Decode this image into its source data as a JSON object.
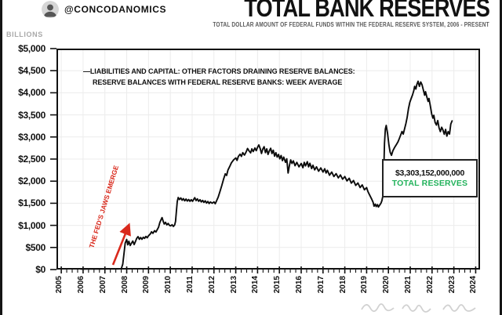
{
  "header": {
    "handle": "@CONCODANOMICS",
    "title": "TOTAL BANK RESERVES",
    "subtitle": "TOTAL DOLLAR AMOUNT OF FEDERAL FUNDS WITHIN THE FEDERAL RESERVE SYSTEM, 2006 - PRESENT",
    "units_label": "BILLIONS"
  },
  "annotations": {
    "jaws_label": "THE FED'S JAWS EMERGE",
    "reserves_value": "$3,303,152,000,000",
    "reserves_title": "TOTAL RESERVES",
    "accent_red": "#d9291c",
    "accent_green": "#22b25b"
  },
  "chart_data": {
    "type": "line",
    "title": "TOTAL BANK RESERVES",
    "ylabel": "BILLIONS",
    "xlabel": "",
    "grid": true,
    "legend_position": "top-left inside plot",
    "legend_line1": "—LIABILITIES AND CAPITAL: OTHER FACTORS DRAINING RESERVE BALANCES:",
    "legend_line2": "RESERVE BALANCES WITH FEDERAL RESERVE BANKS: WEEK AVERAGE",
    "xlim": [
      2004.78,
      2024.2
    ],
    "ylim": [
      0,
      5000
    ],
    "x_ticks": [
      2005,
      2006,
      2007,
      2008,
      2009,
      2010,
      2011,
      2012,
      2013,
      2014,
      2015,
      2016,
      2017,
      2018,
      2019,
      2020,
      2021,
      2022,
      2023,
      2024
    ],
    "y_ticks": {
      "values": [
        0,
        500,
        1000,
        1500,
        2000,
        2500,
        3000,
        3500,
        4000,
        4500,
        5000
      ],
      "labels": [
        "$0",
        "$500",
        "$1,000",
        "$1,500",
        "$2,000",
        "$2,500",
        "$3,000",
        "$3,500",
        "$4,000",
        "$4,500",
        "$5,000"
      ]
    },
    "line_color": "#0b0b0b",
    "last_value_billions": 3303.152,
    "series": [
      {
        "name": "Liabilities and Capital: Other Factors Draining Reserve Balances: Reserve Balances with Federal Reserve Banks: Week Average",
        "units": "billions of dollars",
        "points": [
          [
            2005.9,
            10
          ],
          [
            2006.2,
            12
          ],
          [
            2006.5,
            12
          ],
          [
            2006.8,
            13
          ],
          [
            2007.1,
            14
          ],
          [
            2007.4,
            15
          ],
          [
            2007.6,
            15
          ],
          [
            2007.75,
            18
          ],
          [
            2007.82,
            120
          ],
          [
            2007.88,
            380
          ],
          [
            2007.93,
            600
          ],
          [
            2008,
            680
          ],
          [
            2008.05,
            560
          ],
          [
            2008.1,
            640
          ],
          [
            2008.16,
            545
          ],
          [
            2008.22,
            600
          ],
          [
            2008.28,
            645
          ],
          [
            2008.34,
            565
          ],
          [
            2008.4,
            635
          ],
          [
            2008.46,
            705
          ],
          [
            2008.52,
            745
          ],
          [
            2008.58,
            685
          ],
          [
            2008.64,
            725
          ],
          [
            2008.7,
            685
          ],
          [
            2008.76,
            730
          ],
          [
            2008.82,
            705
          ],
          [
            2008.88,
            750
          ],
          [
            2008.94,
            720
          ],
          [
            2009,
            765
          ],
          [
            2009.08,
            805
          ],
          [
            2009.14,
            855
          ],
          [
            2009.2,
            820
          ],
          [
            2009.28,
            880
          ],
          [
            2009.34,
            850
          ],
          [
            2009.4,
            905
          ],
          [
            2009.46,
            955
          ],
          [
            2009.52,
            1065
          ],
          [
            2009.58,
            1135
          ],
          [
            2009.62,
            1175
          ],
          [
            2009.68,
            1080
          ],
          [
            2009.72,
            1030
          ],
          [
            2009.78,
            1070
          ],
          [
            2009.84,
            1010
          ],
          [
            2009.9,
            1045
          ],
          [
            2009.96,
            1000
          ],
          [
            2010.02,
            990
          ],
          [
            2010.08,
            1015
          ],
          [
            2010.14,
            975
          ],
          [
            2010.2,
            1010
          ],
          [
            2010.24,
            1090
          ],
          [
            2010.28,
            1320
          ],
          [
            2010.32,
            1540
          ],
          [
            2010.36,
            1630
          ],
          [
            2010.42,
            1585
          ],
          [
            2010.48,
            1620
          ],
          [
            2010.54,
            1570
          ],
          [
            2010.6,
            1605
          ],
          [
            2010.66,
            1555
          ],
          [
            2010.72,
            1595
          ],
          [
            2010.78,
            1550
          ],
          [
            2010.84,
            1585
          ],
          [
            2010.9,
            1545
          ],
          [
            2010.96,
            1580
          ],
          [
            2011.02,
            1545
          ],
          [
            2011.08,
            1595
          ],
          [
            2011.12,
            1625
          ],
          [
            2011.18,
            1560
          ],
          [
            2011.24,
            1600
          ],
          [
            2011.3,
            1545
          ],
          [
            2011.36,
            1580
          ],
          [
            2011.42,
            1530
          ],
          [
            2011.48,
            1565
          ],
          [
            2011.54,
            1520
          ],
          [
            2011.6,
            1555
          ],
          [
            2011.66,
            1505
          ],
          [
            2011.72,
            1540
          ],
          [
            2011.78,
            1495
          ],
          [
            2011.84,
            1530
          ],
          [
            2011.92,
            1500
          ],
          [
            2012,
            1530
          ],
          [
            2012.06,
            1490
          ],
          [
            2012.12,
            1555
          ],
          [
            2012.2,
            1645
          ],
          [
            2012.28,
            1770
          ],
          [
            2012.36,
            1905
          ],
          [
            2012.44,
            2045
          ],
          [
            2012.52,
            2165
          ],
          [
            2012.58,
            2130
          ],
          [
            2012.64,
            2250
          ],
          [
            2012.72,
            2330
          ],
          [
            2012.8,
            2415
          ],
          [
            2012.9,
            2480
          ],
          [
            2013,
            2525
          ],
          [
            2013.06,
            2470
          ],
          [
            2013.12,
            2560
          ],
          [
            2013.2,
            2610
          ],
          [
            2013.26,
            2560
          ],
          [
            2013.32,
            2645
          ],
          [
            2013.4,
            2590
          ],
          [
            2013.48,
            2665
          ],
          [
            2013.54,
            2740
          ],
          [
            2013.6,
            2690
          ],
          [
            2013.68,
            2640
          ],
          [
            2013.74,
            2730
          ],
          [
            2013.8,
            2670
          ],
          [
            2013.88,
            2750
          ],
          [
            2013.94,
            2690
          ],
          [
            2014,
            2770
          ],
          [
            2014.06,
            2820
          ],
          [
            2014.12,
            2740
          ],
          [
            2014.18,
            2625
          ],
          [
            2014.24,
            2725
          ],
          [
            2014.3,
            2780
          ],
          [
            2014.36,
            2645
          ],
          [
            2014.42,
            2730
          ],
          [
            2014.48,
            2605
          ],
          [
            2014.54,
            2685
          ],
          [
            2014.6,
            2745
          ],
          [
            2014.66,
            2625
          ],
          [
            2014.72,
            2700
          ],
          [
            2014.78,
            2565
          ],
          [
            2014.84,
            2645
          ],
          [
            2014.9,
            2545
          ],
          [
            2014.96,
            2605
          ],
          [
            2015.02,
            2505
          ],
          [
            2015.08,
            2580
          ],
          [
            2015.14,
            2465
          ],
          [
            2015.2,
            2545
          ],
          [
            2015.28,
            2425
          ],
          [
            2015.34,
            2505
          ],
          [
            2015.4,
            2185
          ],
          [
            2015.46,
            2355
          ],
          [
            2015.52,
            2480
          ],
          [
            2015.58,
            2400
          ],
          [
            2015.64,
            2460
          ],
          [
            2015.72,
            2350
          ],
          [
            2015.8,
            2425
          ],
          [
            2015.9,
            2325
          ],
          [
            2016,
            2400
          ],
          [
            2016.08,
            2305
          ],
          [
            2016.14,
            2425
          ],
          [
            2016.2,
            2345
          ],
          [
            2016.28,
            2440
          ],
          [
            2016.34,
            2325
          ],
          [
            2016.4,
            2405
          ],
          [
            2016.48,
            2285
          ],
          [
            2016.54,
            2360
          ],
          [
            2016.62,
            2255
          ],
          [
            2016.7,
            2325
          ],
          [
            2016.8,
            2225
          ],
          [
            2016.9,
            2300
          ],
          [
            2017,
            2205
          ],
          [
            2017.08,
            2280
          ],
          [
            2017.14,
            2185
          ],
          [
            2017.2,
            2245
          ],
          [
            2017.3,
            2135
          ],
          [
            2017.4,
            2205
          ],
          [
            2017.5,
            2105
          ],
          [
            2017.6,
            2170
          ],
          [
            2017.7,
            2075
          ],
          [
            2017.8,
            2140
          ],
          [
            2017.9,
            2045
          ],
          [
            2018,
            2105
          ],
          [
            2018.1,
            2005
          ],
          [
            2018.2,
            2065
          ],
          [
            2018.3,
            1955
          ],
          [
            2018.4,
            2015
          ],
          [
            2018.5,
            1905
          ],
          [
            2018.6,
            1960
          ],
          [
            2018.7,
            1855
          ],
          [
            2018.8,
            1915
          ],
          [
            2018.9,
            1805
          ],
          [
            2019,
            1855
          ],
          [
            2019.06,
            1765
          ],
          [
            2019.12,
            1705
          ],
          [
            2019.18,
            1645
          ],
          [
            2019.24,
            1585
          ],
          [
            2019.3,
            1520
          ],
          [
            2019.34,
            1435
          ],
          [
            2019.4,
            1480
          ],
          [
            2019.44,
            1425
          ],
          [
            2019.5,
            1470
          ],
          [
            2019.54,
            1415
          ],
          [
            2019.6,
            1460
          ],
          [
            2019.66,
            1505
          ],
          [
            2019.7,
            1560
          ],
          [
            2019.74,
            1655
          ],
          [
            2019.78,
            2120
          ],
          [
            2019.82,
            2860
          ],
          [
            2019.86,
            3180
          ],
          [
            2019.9,
            3260
          ],
          [
            2019.96,
            3080
          ],
          [
            2020.02,
            2825
          ],
          [
            2020.08,
            2655
          ],
          [
            2020.14,
            2585
          ],
          [
            2020.2,
            2685
          ],
          [
            2020.28,
            2760
          ],
          [
            2020.36,
            2825
          ],
          [
            2020.44,
            2890
          ],
          [
            2020.5,
            2965
          ],
          [
            2020.56,
            3045
          ],
          [
            2020.62,
            3125
          ],
          [
            2020.68,
            3065
          ],
          [
            2020.74,
            3185
          ],
          [
            2020.8,
            3305
          ],
          [
            2020.86,
            3445
          ],
          [
            2020.92,
            3645
          ],
          [
            2020.98,
            3785
          ],
          [
            2021.04,
            3865
          ],
          [
            2021.1,
            3945
          ],
          [
            2021.16,
            4045
          ],
          [
            2021.2,
            4145
          ],
          [
            2021.26,
            4085
          ],
          [
            2021.3,
            4185
          ],
          [
            2021.36,
            4260
          ],
          [
            2021.42,
            4145
          ],
          [
            2021.48,
            4245
          ],
          [
            2021.54,
            4185
          ],
          [
            2021.6,
            4065
          ],
          [
            2021.66,
            3945
          ],
          [
            2021.7,
            4025
          ],
          [
            2021.76,
            3905
          ],
          [
            2021.82,
            3805
          ],
          [
            2021.86,
            3870
          ],
          [
            2021.92,
            3705
          ],
          [
            2021.98,
            3525
          ],
          [
            2022.04,
            3425
          ],
          [
            2022.08,
            3490
          ],
          [
            2022.14,
            3330
          ],
          [
            2022.2,
            3270
          ],
          [
            2022.26,
            3370
          ],
          [
            2022.32,
            3210
          ],
          [
            2022.38,
            3120
          ],
          [
            2022.44,
            3220
          ],
          [
            2022.5,
            3160
          ],
          [
            2022.56,
            3060
          ],
          [
            2022.62,
            3170
          ],
          [
            2022.68,
            3020
          ],
          [
            2022.74,
            3120
          ],
          [
            2022.8,
            3065
          ],
          [
            2022.86,
            3290
          ],
          [
            2022.92,
            3365
          ]
        ]
      }
    ]
  }
}
